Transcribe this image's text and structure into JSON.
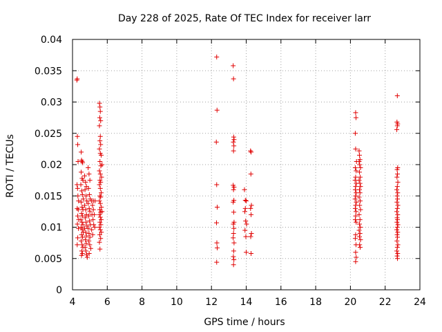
{
  "chart_data": {
    "type": "scatter",
    "title": "Day 228 of 2025, Rate Of TEC Index for receiver larr",
    "xlabel": "GPS time / hours",
    "ylabel": "ROTI / TECUs",
    "xlim": [
      4,
      24
    ],
    "ylim": [
      0,
      0.04
    ],
    "xticks": [
      "4",
      "6",
      "8",
      "10",
      "12",
      "14",
      "16",
      "18",
      "20",
      "22",
      "24"
    ],
    "yticks": [
      "0",
      "0.005",
      "0.01",
      "0.015",
      "0.02",
      "0.025",
      "0.03",
      "0.035",
      "0.04"
    ],
    "grid": true,
    "marker": "+",
    "color": "#e00000",
    "points": [
      [
        4.25,
        0.0335
      ],
      [
        4.27,
        0.0337
      ],
      [
        4.28,
        0.0245
      ],
      [
        4.3,
        0.0232
      ],
      [
        4.32,
        0.0205
      ],
      [
        4.26,
        0.0168
      ],
      [
        4.29,
        0.0162
      ],
      [
        4.31,
        0.015
      ],
      [
        4.27,
        0.013
      ],
      [
        4.33,
        0.0128
      ],
      [
        4.3,
        0.0118
      ],
      [
        4.28,
        0.0105
      ],
      [
        4.34,
        0.0098
      ],
      [
        4.3,
        0.0083
      ],
      [
        4.27,
        0.0072
      ],
      [
        4.35,
        0.0142
      ],
      [
        4.36,
        0.0112
      ],
      [
        4.5,
        0.022
      ],
      [
        4.52,
        0.0207
      ],
      [
        4.55,
        0.0205
      ],
      [
        4.58,
        0.0203
      ],
      [
        4.5,
        0.0188
      ],
      [
        4.55,
        0.0178
      ],
      [
        4.6,
        0.0175
      ],
      [
        4.48,
        0.0168
      ],
      [
        4.53,
        0.0158
      ],
      [
        4.57,
        0.0152
      ],
      [
        4.62,
        0.0145
      ],
      [
        4.5,
        0.014
      ],
      [
        4.55,
        0.0132
      ],
      [
        4.6,
        0.0128
      ],
      [
        4.52,
        0.0122
      ],
      [
        4.57,
        0.0118
      ],
      [
        4.48,
        0.0112
      ],
      [
        4.55,
        0.0108
      ],
      [
        4.6,
        0.0104
      ],
      [
        4.5,
        0.01
      ],
      [
        4.56,
        0.0096
      ],
      [
        4.62,
        0.0092
      ],
      [
        4.52,
        0.0088
      ],
      [
        4.58,
        0.0084
      ],
      [
        4.5,
        0.0078
      ],
      [
        4.55,
        0.0072
      ],
      [
        4.6,
        0.0068
      ],
      [
        4.53,
        0.0062
      ],
      [
        4.57,
        0.0058
      ],
      [
        4.52,
        0.0055
      ],
      [
        4.7,
        0.0182
      ],
      [
        4.75,
        0.0172
      ],
      [
        4.8,
        0.0165
      ],
      [
        4.72,
        0.016
      ],
      [
        4.78,
        0.015
      ],
      [
        4.82,
        0.0142
      ],
      [
        4.7,
        0.0135
      ],
      [
        4.76,
        0.0128
      ],
      [
        4.8,
        0.012
      ],
      [
        4.73,
        0.0115
      ],
      [
        4.78,
        0.0108
      ],
      [
        4.83,
        0.0102
      ],
      [
        4.7,
        0.0098
      ],
      [
        4.76,
        0.0092
      ],
      [
        4.8,
        0.0086
      ],
      [
        4.74,
        0.008
      ],
      [
        4.79,
        0.0074
      ],
      [
        4.72,
        0.0068
      ],
      [
        4.77,
        0.0062
      ],
      [
        4.81,
        0.0056
      ],
      [
        4.85,
        0.0052
      ],
      [
        4.9,
        0.0195
      ],
      [
        4.95,
        0.0185
      ],
      [
        5.0,
        0.0175
      ],
      [
        4.92,
        0.0162
      ],
      [
        4.97,
        0.0152
      ],
      [
        5.02,
        0.0145
      ],
      [
        4.9,
        0.0138
      ],
      [
        4.96,
        0.013
      ],
      [
        5.0,
        0.0125
      ],
      [
        4.93,
        0.0118
      ],
      [
        4.98,
        0.011
      ],
      [
        5.03,
        0.0104
      ],
      [
        4.9,
        0.0098
      ],
      [
        4.95,
        0.009
      ],
      [
        5.0,
        0.0084
      ],
      [
        4.94,
        0.0078
      ],
      [
        4.99,
        0.0072
      ],
      [
        5.05,
        0.0066
      ],
      [
        4.96,
        0.0058
      ],
      [
        5.1,
        0.0142
      ],
      [
        5.15,
        0.0135
      ],
      [
        5.2,
        0.0128
      ],
      [
        5.12,
        0.012
      ],
      [
        5.18,
        0.0112
      ],
      [
        5.22,
        0.0104
      ],
      [
        5.1,
        0.0096
      ],
      [
        5.16,
        0.0088
      ],
      [
        5.2,
        0.0142
      ],
      [
        5.25,
        0.012
      ],
      [
        5.3,
        0.0142
      ],
      [
        5.28,
        0.01
      ],
      [
        5.55,
        0.0298
      ],
      [
        5.58,
        0.0292
      ],
      [
        5.6,
        0.0285
      ],
      [
        5.57,
        0.0275
      ],
      [
        5.62,
        0.027
      ],
      [
        5.55,
        0.0262
      ],
      [
        5.6,
        0.0245
      ],
      [
        5.58,
        0.0238
      ],
      [
        5.62,
        0.0232
      ],
      [
        5.55,
        0.0225
      ],
      [
        5.6,
        0.0218
      ],
      [
        5.65,
        0.0215
      ],
      [
        5.58,
        0.0205
      ],
      [
        5.63,
        0.0198
      ],
      [
        5.55,
        0.019
      ],
      [
        5.6,
        0.0185
      ],
      [
        5.67,
        0.018
      ],
      [
        5.58,
        0.0175
      ],
      [
        5.62,
        0.0172
      ],
      [
        5.55,
        0.0168
      ],
      [
        5.6,
        0.0162
      ],
      [
        5.65,
        0.0155
      ],
      [
        5.58,
        0.015
      ],
      [
        5.62,
        0.0148
      ],
      [
        5.55,
        0.0142
      ],
      [
        5.6,
        0.0138
      ],
      [
        5.66,
        0.0132
      ],
      [
        5.57,
        0.0128
      ],
      [
        5.62,
        0.0124
      ],
      [
        5.55,
        0.012
      ],
      [
        5.6,
        0.0116
      ],
      [
        5.65,
        0.0112
      ],
      [
        5.58,
        0.0108
      ],
      [
        5.63,
        0.0104
      ],
      [
        5.55,
        0.01
      ],
      [
        5.6,
        0.0096
      ],
      [
        5.66,
        0.0092
      ],
      [
        5.57,
        0.0088
      ],
      [
        5.62,
        0.0082
      ],
      [
        5.55,
        0.0076
      ],
      [
        5.58,
        0.0065
      ],
      [
        5.7,
        0.0125
      ],
      [
        5.7,
        0.02
      ],
      [
        12.3,
        0.0372
      ],
      [
        12.32,
        0.0287
      ],
      [
        12.28,
        0.0236
      ],
      [
        12.3,
        0.0168
      ],
      [
        12.33,
        0.0132
      ],
      [
        12.29,
        0.0107
      ],
      [
        12.31,
        0.0075
      ],
      [
        12.33,
        0.0067
      ],
      [
        12.3,
        0.0044
      ],
      [
        13.25,
        0.0358
      ],
      [
        13.27,
        0.0337
      ],
      [
        13.28,
        0.0244
      ],
      [
        13.3,
        0.024
      ],
      [
        13.26,
        0.0236
      ],
      [
        13.29,
        0.023
      ],
      [
        13.27,
        0.0222
      ],
      [
        13.25,
        0.0167
      ],
      [
        13.3,
        0.0164
      ],
      [
        13.27,
        0.016
      ],
      [
        13.29,
        0.0143
      ],
      [
        13.25,
        0.014
      ],
      [
        13.28,
        0.0124
      ],
      [
        13.3,
        0.0108
      ],
      [
        13.26,
        0.0105
      ],
      [
        13.29,
        0.0098
      ],
      [
        13.27,
        0.009
      ],
      [
        13.25,
        0.0083
      ],
      [
        13.3,
        0.0075
      ],
      [
        13.28,
        0.0062
      ],
      [
        13.26,
        0.0053
      ],
      [
        13.29,
        0.0048
      ],
      [
        13.27,
        0.004
      ],
      [
        13.9,
        0.016
      ],
      [
        13.95,
        0.0143
      ],
      [
        14.0,
        0.0142
      ],
      [
        13.92,
        0.0125
      ],
      [
        13.97,
        0.011
      ],
      [
        14.02,
        0.0105
      ],
      [
        13.93,
        0.0095
      ],
      [
        13.98,
        0.0085
      ],
      [
        14.0,
        0.006
      ],
      [
        13.95,
        0.013
      ],
      [
        14.25,
        0.0222
      ],
      [
        14.28,
        0.022
      ],
      [
        14.27,
        0.0185
      ],
      [
        14.3,
        0.0135
      ],
      [
        14.25,
        0.013
      ],
      [
        14.28,
        0.012
      ],
      [
        14.3,
        0.009
      ],
      [
        14.26,
        0.0085
      ],
      [
        14.28,
        0.0058
      ],
      [
        20.3,
        0.0283
      ],
      [
        20.32,
        0.0275
      ],
      [
        20.28,
        0.025
      ],
      [
        20.3,
        0.0225
      ],
      [
        20.35,
        0.0205
      ],
      [
        20.28,
        0.0195
      ],
      [
        20.33,
        0.019
      ],
      [
        20.3,
        0.018
      ],
      [
        20.27,
        0.0175
      ],
      [
        20.34,
        0.017
      ],
      [
        20.3,
        0.0165
      ],
      [
        20.28,
        0.016
      ],
      [
        20.33,
        0.0155
      ],
      [
        20.3,
        0.015
      ],
      [
        20.27,
        0.0145
      ],
      [
        20.34,
        0.014
      ],
      [
        20.3,
        0.0135
      ],
      [
        20.28,
        0.013
      ],
      [
        20.32,
        0.0125
      ],
      [
        20.3,
        0.0118
      ],
      [
        20.28,
        0.0112
      ],
      [
        20.33,
        0.0108
      ],
      [
        20.3,
        0.0088
      ],
      [
        20.28,
        0.0082
      ],
      [
        20.32,
        0.0072
      ],
      [
        20.3,
        0.006
      ],
      [
        20.33,
        0.0052
      ],
      [
        20.3,
        0.0045
      ],
      [
        20.5,
        0.0222
      ],
      [
        20.52,
        0.0215
      ],
      [
        20.55,
        0.0208
      ],
      [
        20.5,
        0.0205
      ],
      [
        20.53,
        0.02
      ],
      [
        20.58,
        0.0195
      ],
      [
        20.52,
        0.0188
      ],
      [
        20.56,
        0.018
      ],
      [
        20.5,
        0.0175
      ],
      [
        20.55,
        0.017
      ],
      [
        20.58,
        0.0165
      ],
      [
        20.52,
        0.016
      ],
      [
        20.55,
        0.0155
      ],
      [
        20.5,
        0.0148
      ],
      [
        20.56,
        0.0142
      ],
      [
        20.53,
        0.0135
      ],
      [
        20.58,
        0.0128
      ],
      [
        20.5,
        0.012
      ],
      [
        20.55,
        0.0112
      ],
      [
        20.52,
        0.0105
      ],
      [
        20.57,
        0.01
      ],
      [
        20.5,
        0.0095
      ],
      [
        20.55,
        0.009
      ],
      [
        20.52,
        0.0085
      ],
      [
        20.58,
        0.008
      ],
      [
        20.53,
        0.0072
      ],
      [
        20.56,
        0.0068
      ],
      [
        22.7,
        0.031
      ],
      [
        22.68,
        0.0268
      ],
      [
        22.72,
        0.0265
      ],
      [
        22.7,
        0.0262
      ],
      [
        22.67,
        0.0256
      ],
      [
        22.72,
        0.0195
      ],
      [
        22.69,
        0.0192
      ],
      [
        22.71,
        0.0185
      ],
      [
        22.68,
        0.018
      ],
      [
        22.73,
        0.0172
      ],
      [
        22.7,
        0.0165
      ],
      [
        22.67,
        0.016
      ],
      [
        22.72,
        0.0155
      ],
      [
        22.69,
        0.015
      ],
      [
        22.71,
        0.0145
      ],
      [
        22.68,
        0.014
      ],
      [
        22.73,
        0.0135
      ],
      [
        22.7,
        0.013
      ],
      [
        22.67,
        0.0125
      ],
      [
        22.72,
        0.012
      ],
      [
        22.69,
        0.0115
      ],
      [
        22.71,
        0.0112
      ],
      [
        22.68,
        0.0108
      ],
      [
        22.73,
        0.0104
      ],
      [
        22.7,
        0.01
      ],
      [
        22.67,
        0.0096
      ],
      [
        22.72,
        0.0092
      ],
      [
        22.69,
        0.0088
      ],
      [
        22.71,
        0.0084
      ],
      [
        22.68,
        0.0078
      ],
      [
        22.73,
        0.0072
      ],
      [
        22.7,
        0.0068
      ],
      [
        22.67,
        0.0062
      ],
      [
        22.72,
        0.0058
      ],
      [
        22.69,
        0.0054
      ],
      [
        22.71,
        0.005
      ]
    ]
  }
}
